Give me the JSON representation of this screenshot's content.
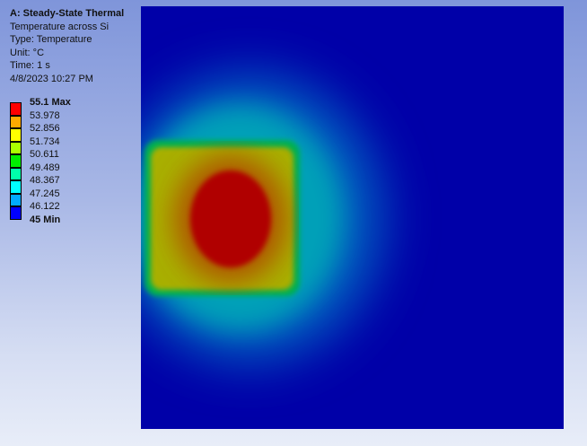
{
  "header": {
    "title": "A: Steady-State Thermal",
    "subtitle": "Temperature across Si",
    "type": "Type: Temperature",
    "unit": "Unit: °C",
    "time": "Time: 1 s",
    "timestamp": "4/8/2023 10:27 PM"
  },
  "legend": {
    "max_label": "55.1 Max",
    "min_label": "45 Min",
    "levels": [
      "53.978",
      "52.856",
      "51.734",
      "50.611",
      "49.489",
      "48.367",
      "47.245",
      "46.122"
    ],
    "band_colors": [
      "#ff0000",
      "#ffaa00",
      "#ffff00",
      "#aaff00",
      "#00ee00",
      "#00ffaa",
      "#00ffff",
      "#00aaff",
      "#0000ff"
    ]
  },
  "plot": {
    "background_color": "#0000a8",
    "hot_color": "#b00000"
  }
}
